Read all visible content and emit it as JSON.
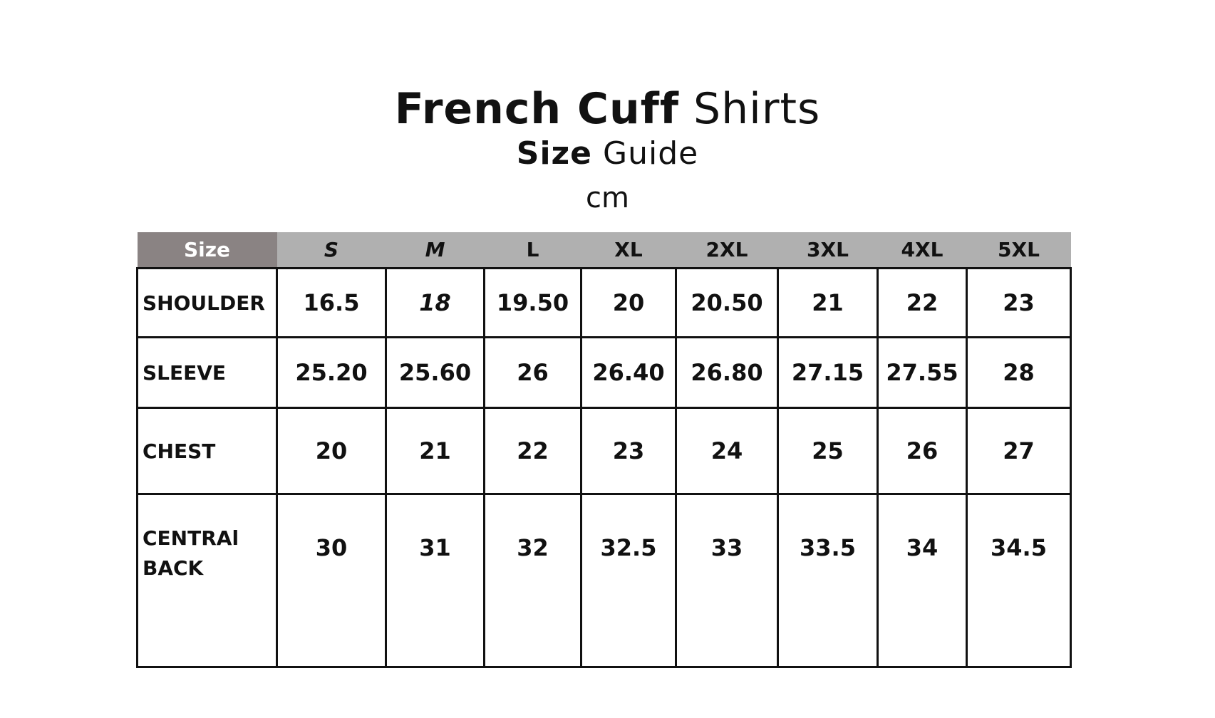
{
  "title": {
    "bold": "French Cuff",
    "regular": "Shirts"
  },
  "subtitle": {
    "bold": "Size",
    "regular": "Guide"
  },
  "unit": "cm",
  "table": {
    "header": [
      "Size",
      "S",
      "M",
      "L",
      "XL",
      "2XL",
      "3XL",
      "4XL",
      "5XL"
    ],
    "rows": [
      {
        "label": "SHOULDER",
        "values": [
          "16.5",
          "18",
          "19.50",
          "20",
          "20.50",
          "21",
          "22",
          "23"
        ]
      },
      {
        "label": "SLEEVE",
        "values": [
          "25.20",
          "25.60",
          "26",
          "26.40",
          "26.80",
          "27.15",
          "27.55",
          "28"
        ]
      },
      {
        "label": "CHEST",
        "values": [
          "20",
          "21",
          "22",
          "23",
          "24",
          "25",
          "26",
          "27"
        ]
      },
      {
        "label": "CENTRAl BACK",
        "values": [
          "30",
          "31",
          "32",
          "32.5",
          "33",
          "33.5",
          "34",
          "34.5"
        ]
      }
    ]
  },
  "colors": {
    "header_first": "#8a8383",
    "header": "#b0b0b0",
    "border": "#111111"
  }
}
